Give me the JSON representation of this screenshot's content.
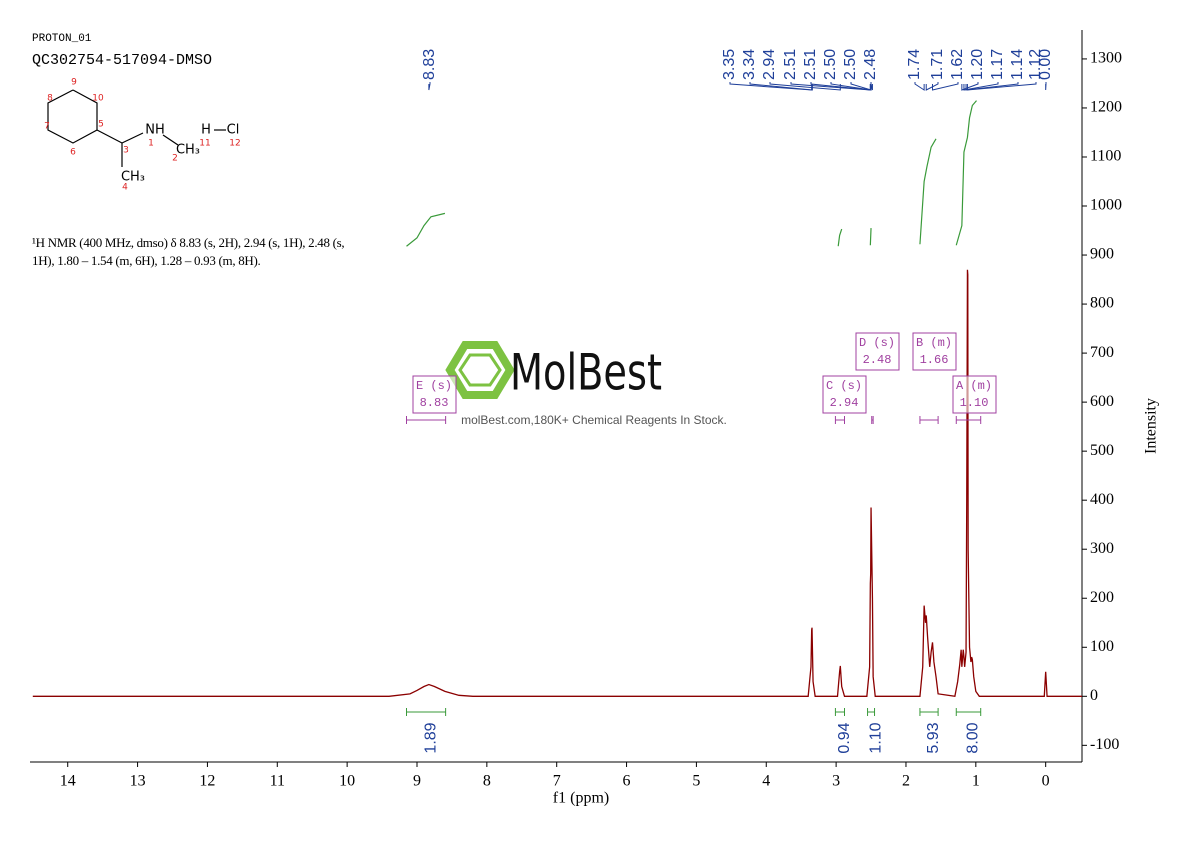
{
  "header": {
    "title": "PROTON_01",
    "sample": "QC302754-517094-DMSO",
    "description": "¹H NMR (400 MHz, dmso) δ 8.83 (s, 2H), 2.94 (s, 1H), 2.48 (s, 1H), 1.80 – 1.54 (m, 6H), 1.28 – 0.93 (m, 8H)."
  },
  "structure": {
    "labels": [
      "8",
      "9",
      "10",
      "7",
      "5",
      "6",
      "3",
      "NH",
      "1",
      "CH₃",
      "2",
      "H",
      "Cl",
      "11",
      "12",
      "CH₃",
      "4"
    ]
  },
  "watermark": {
    "brand": "MolBest",
    "tagline": "molBest.com,180K+ Chemical Reagents In Stock."
  },
  "chart_data": {
    "type": "line",
    "x_label": "f1 (ppm)",
    "y_label": "Intensity",
    "xlim": [
      14.54,
      -0.52
    ],
    "xticks": [
      14,
      13,
      12,
      11,
      10,
      9,
      8,
      7,
      6,
      5,
      4,
      3,
      2,
      1,
      0
    ],
    "ylim": [
      -134,
      1359
    ],
    "yticks": [
      -100,
      0,
      100,
      200,
      300,
      400,
      500,
      600,
      700,
      800,
      900,
      1000,
      1100,
      1200,
      1300
    ],
    "series": [
      {
        "color": "#8b0000",
        "x": [
          14.5,
          9.4,
          9.1,
          9.0,
          8.9,
          8.83,
          8.75,
          8.6,
          8.4,
          8.2,
          3.4,
          3.36,
          3.35,
          3.345,
          3.33,
          3.3,
          2.98,
          2.95,
          2.94,
          2.92,
          2.88,
          2.56,
          2.52,
          2.51,
          2.505,
          2.5,
          2.495,
          2.48,
          2.47,
          2.44,
          1.8,
          1.76,
          1.74,
          1.72,
          1.71,
          1.69,
          1.66,
          1.64,
          1.62,
          1.6,
          1.57,
          1.54,
          1.3,
          1.26,
          1.23,
          1.21,
          1.2,
          1.18,
          1.17,
          1.16,
          1.14,
          1.13,
          1.12,
          1.115,
          1.11,
          1.09,
          1.07,
          1.06,
          1.05,
          1.03,
          1.0,
          0.95,
          0.02,
          0.0,
          -0.02,
          -0.52
        ],
        "values": [
          0,
          0,
          5,
          12,
          20,
          24,
          20,
          10,
          2,
          0,
          0,
          60,
          135,
          140,
          30,
          0,
          0,
          50,
          62,
          20,
          0,
          0,
          60,
          230,
          250,
          385,
          340,
          200,
          40,
          0,
          0,
          60,
          185,
          150,
          165,
          120,
          60,
          90,
          110,
          70,
          40,
          5,
          0,
          30,
          65,
          95,
          60,
          95,
          80,
          60,
          90,
          400,
          870,
          860,
          300,
          100,
          70,
          80,
          75,
          40,
          10,
          0,
          0,
          50,
          0,
          0
        ]
      },
      {
        "color": "#3a9a3a",
        "x": [
          9.15,
          9.0,
          8.9,
          8.8,
          8.6,
          null,
          2.97,
          2.95,
          2.92,
          null,
          2.51,
          2.5,
          null,
          1.8,
          1.74,
          1.7,
          1.64,
          1.57,
          null,
          1.28,
          1.2,
          1.17,
          1.12,
          1.09,
          1.05,
          0.99
        ],
        "values": [
          918,
          935,
          960,
          978,
          985,
          null,
          918,
          940,
          953,
          null,
          920,
          955,
          null,
          922,
          1050,
          1080,
          1120,
          1137,
          null,
          920,
          960,
          1110,
          1140,
          1180,
          1205,
          1215
        ]
      }
    ],
    "peaks": {
      "color": "#1f3f99",
      "values": [
        8.83,
        3.35,
        3.34,
        2.94,
        2.51,
        2.51,
        2.5,
        2.5,
        2.48,
        1.74,
        1.71,
        1.62,
        1.2,
        1.17,
        1.14,
        1.12,
        0
      ],
      "value_labels": [
        "8.83",
        "3.35",
        "3.34",
        "2.94",
        "2.51",
        "2.51",
        "2.50",
        "2.50",
        "2.48",
        "1.74",
        "1.71",
        "1.62",
        "1.20",
        "1.17",
        "1.14",
        "1.12",
        "0.00"
      ]
    },
    "integrals": {
      "color": "#3a9a3a",
      "label_color": "#1f3f99",
      "values": [
        1.89,
        0.94,
        1.1,
        5.93,
        8
      ],
      "value_labels": [
        "1.89",
        "0.94",
        "1.10",
        "5.93",
        "8.00"
      ],
      "ranges": [
        [
          9.15,
          8.59
        ],
        [
          3.01,
          2.88
        ],
        [
          2.55,
          2.45
        ],
        [
          1.8,
          1.54
        ],
        [
          1.28,
          0.93
        ]
      ]
    },
    "multiplets": {
      "color": "#a040a0",
      "labels": [
        "E (s)",
        "C (s)",
        "D (s)",
        "B (m)",
        "A (m)"
      ],
      "shifts": [
        8.83,
        2.94,
        2.48,
        1.66,
        1.1
      ],
      "shift_labels": [
        "8.83",
        "2.94",
        "2.48",
        "1.66",
        "1.10"
      ],
      "ranges": [
        [
          9.15,
          8.59
        ],
        [
          3.01,
          2.88
        ],
        [
          2.49,
          2.47
        ],
        [
          1.8,
          1.54
        ],
        [
          1.28,
          0.93
        ]
      ]
    }
  }
}
